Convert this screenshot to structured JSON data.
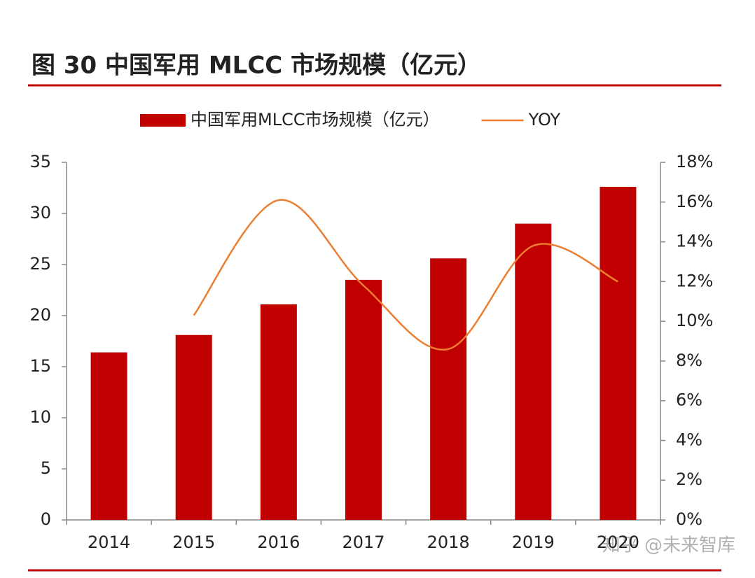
{
  "chart_data": {
    "type": "bar_line",
    "title": "图 30 中国军用 MLCC 市场规模（亿元）",
    "categories": [
      "2014",
      "2015",
      "2016",
      "2017",
      "2018",
      "2019",
      "2020"
    ],
    "series": [
      {
        "name": "中国军用MLCC市场规模（亿元）",
        "type": "bar",
        "color": "#c00000",
        "values": [
          16.4,
          18.1,
          21.1,
          23.5,
          25.6,
          29.0,
          32.6
        ]
      },
      {
        "name": "YOY",
        "type": "line",
        "color": "#ed7d31",
        "axis": "y2",
        "values": [
          null,
          10.3,
          16.1,
          11.8,
          8.6,
          13.8,
          12.0
        ]
      }
    ],
    "ylim": [
      0,
      35
    ],
    "yticks": [
      0,
      5,
      10,
      15,
      20,
      25,
      30,
      35
    ],
    "y2lim": [
      0,
      18
    ],
    "y2ticks": [
      {
        "value": 0,
        "label": "0%"
      },
      {
        "value": 2,
        "label": "2%"
      },
      {
        "value": 4,
        "label": "4%"
      },
      {
        "value": 6,
        "label": "6%"
      },
      {
        "value": 8,
        "label": "8%"
      },
      {
        "value": 10,
        "label": "10%"
      },
      {
        "value": 12,
        "label": "12%"
      },
      {
        "value": 14,
        "label": "14%"
      },
      {
        "value": 16,
        "label": "16%"
      },
      {
        "value": 18,
        "label": "18%"
      }
    ],
    "legend": "top",
    "watermark": "知乎 @未来智库"
  }
}
